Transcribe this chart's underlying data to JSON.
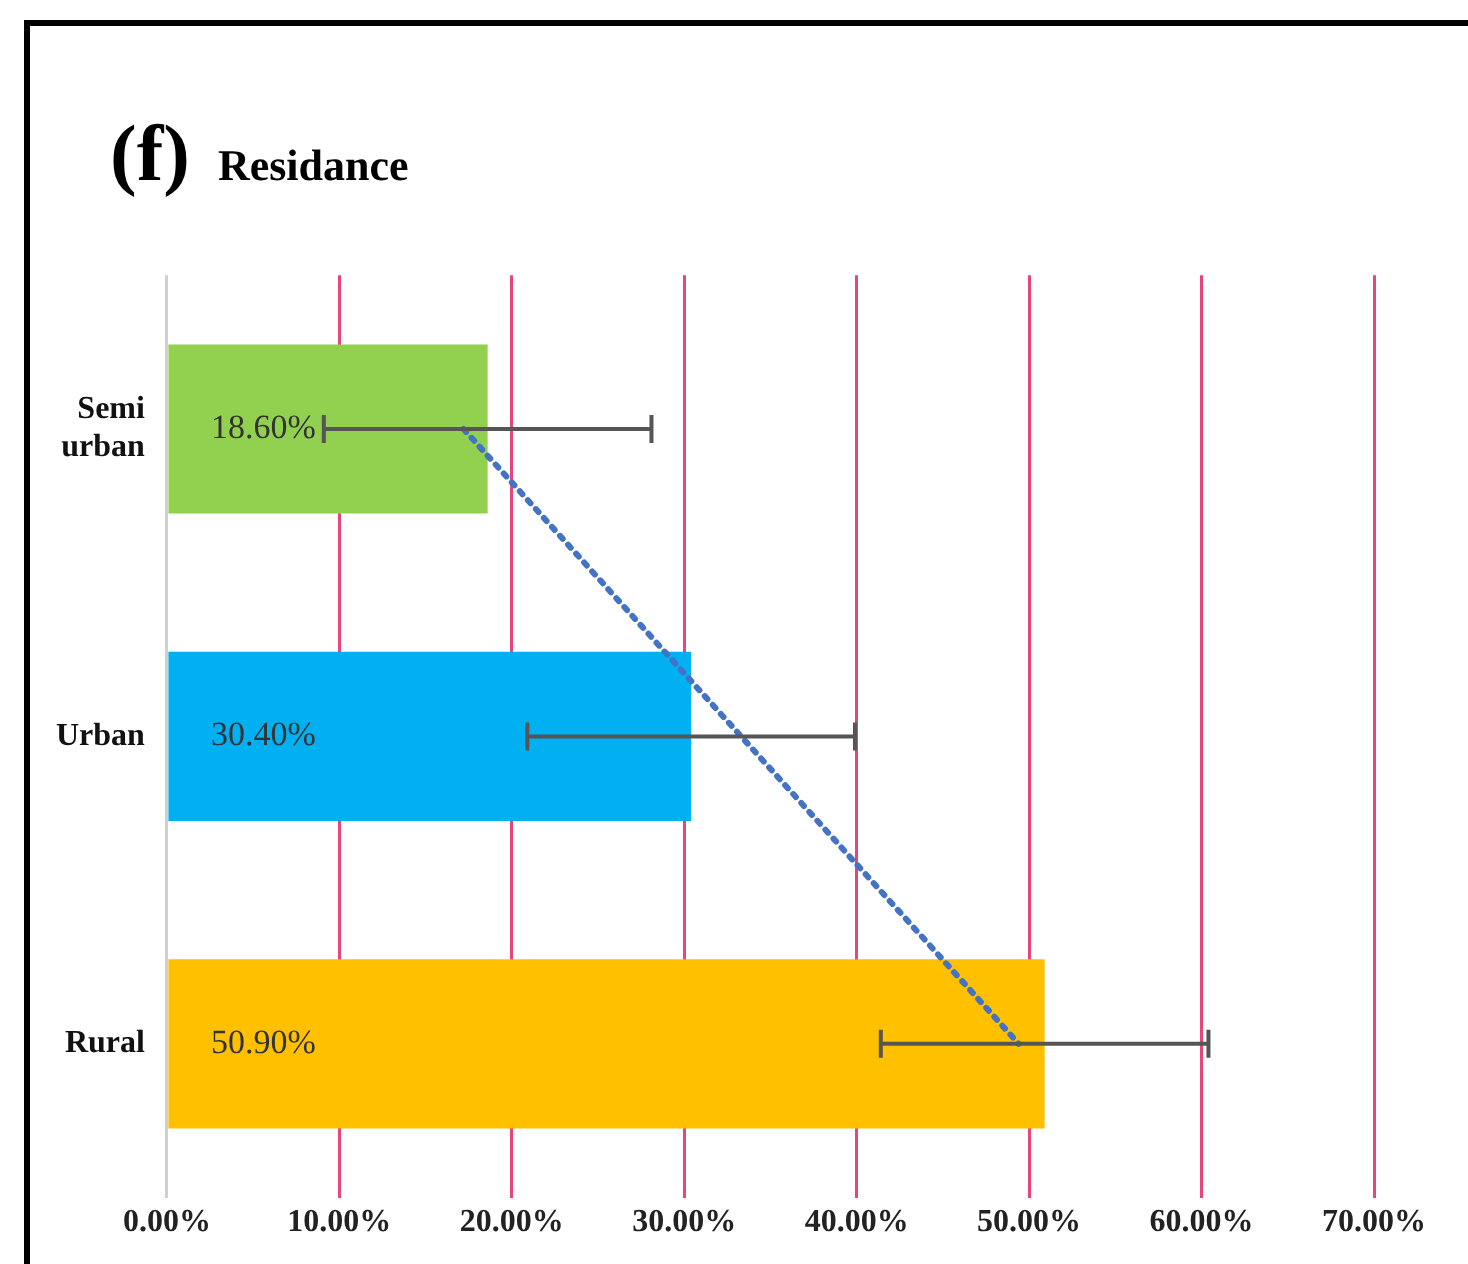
{
  "chart_data": {
    "type": "bar",
    "orientation": "horizontal",
    "title": "Residance",
    "annotations": [
      "(f)"
    ],
    "categories": [
      "Semi urban",
      "Urban",
      "Rural"
    ],
    "series": [
      {
        "colors": [
          "#92d050",
          "#00b0f0",
          "#ffc000"
        ],
        "values": [
          18.6,
          30.4,
          50.9
        ],
        "errors": [
          9.5,
          9.5,
          9.5
        ],
        "value_labels": [
          "18.60%",
          "30.40%",
          "50.90%"
        ]
      },
      {
        "type": "line",
        "color": "#4472c4",
        "line_style": "dotted",
        "marker": "none",
        "values": [
          17.2,
          33.3,
          49.4
        ]
      }
    ],
    "xlim": [
      0,
      70
    ],
    "xticks": [
      {
        "value": 0,
        "label": "0.00%"
      },
      {
        "value": 10,
        "label": "10.00%"
      },
      {
        "value": 20,
        "label": "20.00%"
      },
      {
        "value": 30,
        "label": "30.00%"
      },
      {
        "value": 40,
        "label": "40.00%"
      },
      {
        "value": 50,
        "label": "50.00%"
      },
      {
        "value": 60,
        "label": "60.00%"
      },
      {
        "value": 70,
        "label": "70.00%"
      }
    ],
    "grid": "x",
    "legend": false
  }
}
